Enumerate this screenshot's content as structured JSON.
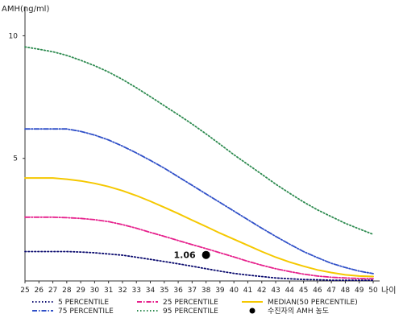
{
  "chart_data": {
    "type": "line",
    "ylabel": "AMH(ng/ml)",
    "xlabel": "나이",
    "xlim": [
      25,
      50
    ],
    "ylim": [
      0,
      11
    ],
    "yticks": [
      5,
      10
    ],
    "x": [
      25,
      26,
      27,
      28,
      29,
      30,
      31,
      32,
      33,
      34,
      35,
      36,
      37,
      38,
      39,
      40,
      41,
      42,
      43,
      44,
      45,
      46,
      47,
      48,
      49,
      50
    ],
    "series": [
      {
        "name": "5 PERCENTILE",
        "color": "#0a0a6e",
        "dash": "dot",
        "values": [
          1.2,
          1.2,
          1.2,
          1.2,
          1.18,
          1.15,
          1.1,
          1.05,
          0.97,
          0.88,
          0.79,
          0.7,
          0.6,
          0.5,
          0.4,
          0.31,
          0.24,
          0.18,
          0.12,
          0.09,
          0.06,
          0.05,
          0.03,
          0.03,
          0.03,
          0.03
        ]
      },
      {
        "name": "25 PERCENTILE",
        "color": "#e6208c",
        "dash": "dashdot",
        "values": [
          2.6,
          2.6,
          2.6,
          2.58,
          2.55,
          2.5,
          2.42,
          2.3,
          2.15,
          1.98,
          1.82,
          1.65,
          1.48,
          1.32,
          1.15,
          0.98,
          0.8,
          0.64,
          0.5,
          0.38,
          0.28,
          0.2,
          0.15,
          0.12,
          0.1,
          0.09
        ]
      },
      {
        "name": "MEDIAN(50 PERCENTILE)",
        "color": "#f5c800",
        "dash": "solid",
        "values": [
          4.2,
          4.2,
          4.2,
          4.15,
          4.08,
          3.98,
          3.85,
          3.68,
          3.48,
          3.25,
          3.0,
          2.75,
          2.48,
          2.22,
          1.95,
          1.7,
          1.45,
          1.2,
          0.97,
          0.77,
          0.6,
          0.45,
          0.34,
          0.25,
          0.2,
          0.18
        ]
      },
      {
        "name": "75 PERCENTILE",
        "color": "#3050c8",
        "dash": "dashdot",
        "values": [
          6.2,
          6.2,
          6.2,
          6.2,
          6.1,
          5.95,
          5.75,
          5.5,
          5.22,
          4.92,
          4.6,
          4.25,
          3.9,
          3.55,
          3.2,
          2.85,
          2.5,
          2.15,
          1.82,
          1.5,
          1.2,
          0.95,
          0.72,
          0.55,
          0.4,
          0.3
        ]
      },
      {
        "name": "95 PERCENTILE",
        "color": "#2e8b50",
        "dash": "dot",
        "values": [
          9.55,
          9.45,
          9.35,
          9.2,
          9.0,
          8.78,
          8.52,
          8.22,
          7.88,
          7.52,
          7.15,
          6.78,
          6.4,
          6.0,
          5.58,
          5.15,
          4.75,
          4.35,
          3.95,
          3.58,
          3.22,
          2.9,
          2.62,
          2.35,
          2.12,
          1.9
        ]
      }
    ],
    "point": {
      "name": "수진자의 AMH 농도",
      "x": 38,
      "y": 1.06,
      "label": "1.06",
      "color": "#000000"
    },
    "legend_position": "bottom"
  }
}
